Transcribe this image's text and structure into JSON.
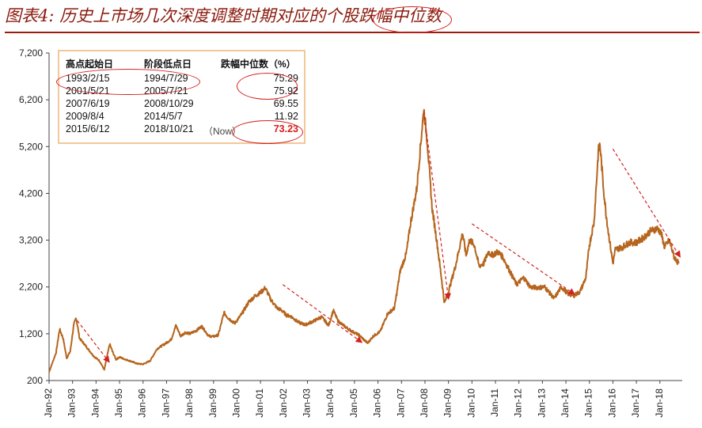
{
  "title": "图表4:  历史上市场几次深度调整时期对应的个股跌幅中位数",
  "table": {
    "headers": [
      "高点起始日",
      "阶段低点日",
      "跌幅中位数（%）"
    ],
    "rows": [
      {
        "start": "1993/2/15",
        "low": "1994/7/29",
        "note": "",
        "value": "75.29"
      },
      {
        "start": "2001/5/21",
        "low": "2005/7/21",
        "note": "",
        "value": "75.92"
      },
      {
        "start": "2007/6/19",
        "low": "2008/10/29",
        "note": "",
        "value": "69.55"
      },
      {
        "start": "2009/8/4",
        "low": "2014/5/7",
        "note": "",
        "value": "11.92"
      },
      {
        "start": "2015/6/12",
        "low": "2018/10/21",
        "note": "（Now）",
        "value": "73.23"
      }
    ]
  },
  "colors": {
    "line": "#b5651d",
    "title": "#8b1a0e",
    "annotation": "#d42020",
    "box_border": "#f2c89a"
  },
  "chart_data": {
    "type": "line",
    "ylim": [
      200,
      7200
    ],
    "yticks": [
      "7,200",
      "6,200",
      "5,200",
      "4,200",
      "3,200",
      "2,200",
      "1,200",
      "200"
    ],
    "xticks": [
      "Jan-92",
      "Jan-93",
      "Jan-94",
      "Jan-95",
      "Jan-96",
      "Jan-97",
      "Jan-98",
      "Jan-99",
      "Jan-00",
      "Jan-01",
      "Jan-02",
      "Jan-03",
      "Jan-04",
      "Jan-05",
      "Jan-06",
      "Jan-07",
      "Jan-08",
      "Jan-09",
      "Jan-10",
      "Jan-11",
      "Jan-12",
      "Jan-13",
      "Jan-14",
      "Jan-15",
      "Jan-16",
      "Jan-17",
      "Jan-18"
    ],
    "x": [
      1992.0,
      1992.3,
      1992.45,
      1992.6,
      1992.75,
      1992.9,
      1993.05,
      1993.15,
      1993.3,
      1993.5,
      1993.7,
      1993.9,
      1994.15,
      1994.35,
      1994.58,
      1994.7,
      1994.85,
      1995.0,
      1995.25,
      1995.5,
      1995.75,
      1996.0,
      1996.3,
      1996.6,
      1996.95,
      1997.2,
      1997.4,
      1997.6,
      1997.8,
      1998.0,
      1998.3,
      1998.5,
      1998.8,
      1999.0,
      1999.2,
      1999.45,
      1999.6,
      1999.9,
      2000.2,
      2000.5,
      2000.8,
      2001.0,
      2001.2,
      2001.45,
      2001.7,
      2001.9,
      2002.1,
      2002.3,
      2002.6,
      2002.9,
      2003.3,
      2003.6,
      2003.9,
      2004.1,
      2004.3,
      2004.6,
      2004.9,
      2005.2,
      2005.45,
      2005.56,
      2005.8,
      2006.1,
      2006.4,
      2006.7,
      2006.95,
      2007.2,
      2007.4,
      2007.65,
      2007.8,
      2007.95,
      2008.1,
      2008.3,
      2008.5,
      2008.7,
      2008.83,
      2009.0,
      2009.3,
      2009.6,
      2009.75,
      2009.9,
      2010.1,
      2010.3,
      2010.5,
      2010.7,
      2010.85,
      2011.1,
      2011.3,
      2011.6,
      2011.9,
      2012.2,
      2012.5,
      2012.9,
      2013.1,
      2013.5,
      2013.8,
      2014.1,
      2014.35,
      2014.6,
      2014.85,
      2015.0,
      2015.2,
      2015.38,
      2015.45,
      2015.6,
      2015.7,
      2015.8,
      2016.0,
      2016.1,
      2016.4,
      2016.7,
      2017.0,
      2017.3,
      2017.6,
      2017.9,
      2018.05,
      2018.2,
      2018.4,
      2018.6,
      2018.8
    ],
    "y": [
      380,
      800,
      1300,
      1100,
      680,
      820,
      1380,
      1550,
      1100,
      980,
      850,
      720,
      620,
      430,
      980,
      820,
      650,
      700,
      650,
      610,
      560,
      550,
      620,
      880,
      990,
      1080,
      1380,
      1150,
      1230,
      1200,
      1280,
      1360,
      1150,
      1140,
      1170,
      1650,
      1550,
      1420,
      1620,
      1880,
      2020,
      2080,
      2180,
      1920,
      1750,
      1700,
      1600,
      1570,
      1450,
      1390,
      1480,
      1560,
      1380,
      1700,
      1470,
      1350,
      1250,
      1170,
      1050,
      1000,
      1150,
      1250,
      1620,
      1750,
      2550,
      2900,
      3600,
      4300,
      5150,
      6000,
      5300,
      3900,
      3200,
      2400,
      1850,
      2100,
      2650,
      3350,
      2880,
      3200,
      3100,
      2650,
      2700,
      2950,
      2880,
      2950,
      2850,
      2550,
      2250,
      2400,
      2190,
      2190,
      2200,
      1950,
      2200,
      2050,
      2020,
      2100,
      2400,
      3100,
      3600,
      5100,
      5250,
      4300,
      3800,
      3400,
      2700,
      3000,
      3050,
      3150,
      3150,
      3250,
      3400,
      3450,
      3350,
      3050,
      3200,
      2850,
      2700
    ]
  }
}
